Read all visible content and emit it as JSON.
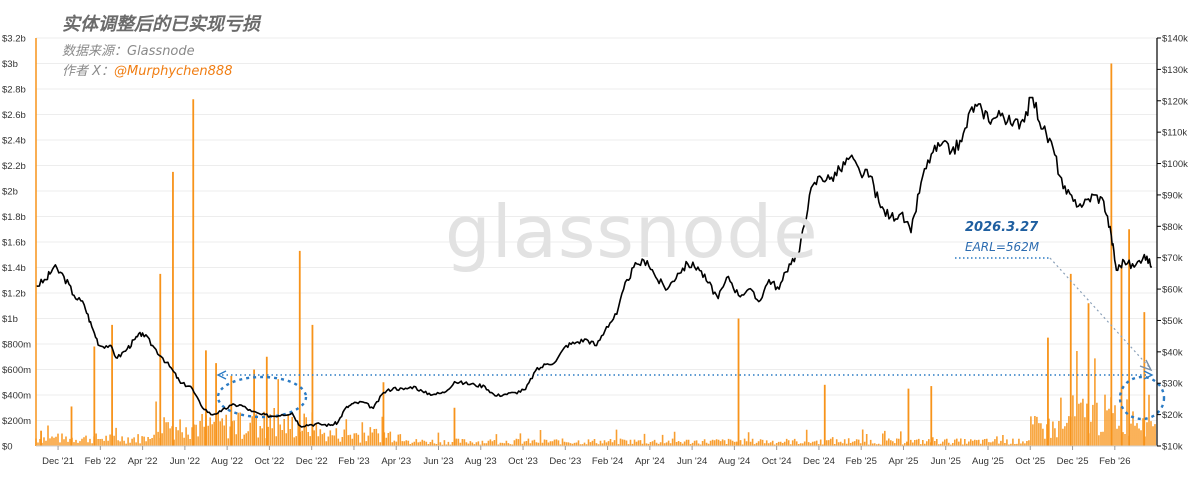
{
  "header": {
    "title": "实体调整后的已实现亏损",
    "source": "数据来源：Glassnode",
    "author_prefix": "作者 X：",
    "author_handle": "@Murphychen888"
  },
  "watermark": "glassnode",
  "annotation": {
    "date": "2026.3.27",
    "earl": "EARL=562M"
  },
  "colors": {
    "loss_bars": "#f7931a",
    "price_line": "#000000",
    "annotation": "#2b7bc4"
  },
  "chart_data": {
    "type": "bar",
    "title": "实体调整后的已实现亏损",
    "x_tick_labels": [
      "Dec '21",
      "Feb '22",
      "Apr '22",
      "Jun '22",
      "Aug '22",
      "Oct '22",
      "Dec '22",
      "Feb '23",
      "Apr '23",
      "Jun '23",
      "Aug '23",
      "Oct '23",
      "Dec '23",
      "Feb '24",
      "Apr '24",
      "Jun '24",
      "Aug '24",
      "Oct '24",
      "Dec '24",
      "Feb '25",
      "Apr '25",
      "Jun '25",
      "Aug '25",
      "Oct '25",
      "Dec '25",
      "Feb '26"
    ],
    "y_left": {
      "ticks": [
        "$0",
        "$200m",
        "$400m",
        "$600m",
        "$800m",
        "$1b",
        "$1.2b",
        "$1.4b",
        "$1.6b",
        "$1.8b",
        "$2b",
        "$2.2b",
        "$2.4b",
        "$2.6b",
        "$2.8b",
        "$3b",
        "$3.2b"
      ],
      "range": [
        0,
        3.2
      ],
      "unit": "b"
    },
    "y_right": {
      "ticks": [
        "$10k",
        "$20k",
        "$30k",
        "$40k",
        "$50k",
        "$60k",
        "$70k",
        "$80k",
        "$90k",
        "$100k",
        "$110k",
        "$120k",
        "$130k",
        "$140k"
      ],
      "range": [
        10,
        140
      ],
      "unit": "k"
    },
    "x_range": [
      2021.83,
      2026.25
    ],
    "price_series": [
      [
        2021.83,
        61
      ],
      [
        2021.87,
        63
      ],
      [
        2021.9,
        67
      ],
      [
        2021.94,
        64
      ],
      [
        2021.98,
        58
      ],
      [
        2022.02,
        55
      ],
      [
        2022.05,
        48
      ],
      [
        2022.08,
        42
      ],
      [
        2022.12,
        42
      ],
      [
        2022.15,
        38
      ],
      [
        2022.19,
        41
      ],
      [
        2022.22,
        44
      ],
      [
        2022.25,
        46
      ],
      [
        2022.29,
        42
      ],
      [
        2022.33,
        38
      ],
      [
        2022.37,
        34
      ],
      [
        2022.4,
        30
      ],
      [
        2022.44,
        29
      ],
      [
        2022.48,
        23
      ],
      [
        2022.52,
        20
      ],
      [
        2022.56,
        21
      ],
      [
        2022.6,
        23
      ],
      [
        2022.64,
        23
      ],
      [
        2022.68,
        21
      ],
      [
        2022.72,
        20
      ],
      [
        2022.76,
        19.5
      ],
      [
        2022.8,
        20
      ],
      [
        2022.84,
        20.5
      ],
      [
        2022.87,
        16.5
      ],
      [
        2022.91,
        16.8
      ],
      [
        2022.95,
        17
      ],
      [
        2022.99,
        16.6
      ],
      [
        2023.02,
        17.5
      ],
      [
        2023.05,
        22
      ],
      [
        2023.08,
        23.5
      ],
      [
        2023.12,
        24
      ],
      [
        2023.16,
        22
      ],
      [
        2023.2,
        27
      ],
      [
        2023.24,
        28.5
      ],
      [
        2023.28,
        28
      ],
      [
        2023.32,
        29
      ],
      [
        2023.36,
        27
      ],
      [
        2023.4,
        26.5
      ],
      [
        2023.44,
        27
      ],
      [
        2023.48,
        30.5
      ],
      [
        2023.52,
        30
      ],
      [
        2023.56,
        29.5
      ],
      [
        2023.6,
        29
      ],
      [
        2023.64,
        26
      ],
      [
        2023.68,
        26.5
      ],
      [
        2023.72,
        27
      ],
      [
        2023.76,
        28
      ],
      [
        2023.8,
        34
      ],
      [
        2023.84,
        36
      ],
      [
        2023.88,
        37
      ],
      [
        2023.92,
        42
      ],
      [
        2023.96,
        43
      ],
      [
        2024.0,
        44
      ],
      [
        2024.04,
        42
      ],
      [
        2024.08,
        48
      ],
      [
        2024.12,
        52
      ],
      [
        2024.16,
        63
      ],
      [
        2024.2,
        68
      ],
      [
        2024.24,
        69
      ],
      [
        2024.28,
        63
      ],
      [
        2024.32,
        60
      ],
      [
        2024.36,
        65
      ],
      [
        2024.4,
        68
      ],
      [
        2024.44,
        67
      ],
      [
        2024.48,
        62
      ],
      [
        2024.52,
        57
      ],
      [
        2024.56,
        64
      ],
      [
        2024.6,
        58
      ],
      [
        2024.64,
        60
      ],
      [
        2024.68,
        56
      ],
      [
        2024.72,
        63
      ],
      [
        2024.76,
        60
      ],
      [
        2024.8,
        68
      ],
      [
        2024.84,
        72
      ],
      [
        2024.88,
        90
      ],
      [
        2024.92,
        96
      ],
      [
        2024.96,
        95
      ],
      [
        2025.0,
        98
      ],
      [
        2025.04,
        102
      ],
      [
        2025.08,
        97
      ],
      [
        2025.12,
        96
      ],
      [
        2025.16,
        86
      ],
      [
        2025.2,
        83
      ],
      [
        2025.24,
        84
      ],
      [
        2025.28,
        78
      ],
      [
        2025.32,
        94
      ],
      [
        2025.36,
        103
      ],
      [
        2025.4,
        106
      ],
      [
        2025.44,
        104
      ],
      [
        2025.48,
        107
      ],
      [
        2025.52,
        118
      ],
      [
        2025.56,
        117
      ],
      [
        2025.6,
        114
      ],
      [
        2025.64,
        116
      ],
      [
        2025.68,
        112
      ],
      [
        2025.72,
        114
      ],
      [
        2025.76,
        121
      ],
      [
        2025.8,
        111
      ],
      [
        2025.84,
        105
      ],
      [
        2025.88,
        92
      ],
      [
        2025.92,
        88
      ],
      [
        2025.96,
        87
      ],
      [
        2026.0,
        90
      ],
      [
        2026.04,
        88
      ],
      [
        2026.07,
        77
      ],
      [
        2026.09,
        66
      ],
      [
        2026.12,
        69
      ],
      [
        2026.16,
        67
      ],
      [
        2026.2,
        71
      ],
      [
        2026.23,
        67
      ]
    ],
    "loss_spikes": [
      [
        2021.85,
        0.12
      ],
      [
        2021.97,
        0.31
      ],
      [
        2022.06,
        0.78
      ],
      [
        2022.13,
        0.95
      ],
      [
        2022.32,
        1.35
      ],
      [
        2022.37,
        2.15
      ],
      [
        2022.45,
        2.72
      ],
      [
        2022.5,
        0.75
      ],
      [
        2022.54,
        0.65
      ],
      [
        2022.6,
        0.55
      ],
      [
        2022.69,
        0.6
      ],
      [
        2022.74,
        0.7
      ],
      [
        2022.87,
        1.53
      ],
      [
        2022.92,
        0.95
      ],
      [
        2023.2,
        0.5
      ],
      [
        2023.48,
        0.3
      ],
      [
        2024.6,
        1.0
      ],
      [
        2024.94,
        0.48
      ],
      [
        2025.27,
        0.45
      ],
      [
        2025.36,
        0.47
      ],
      [
        2025.82,
        0.85
      ],
      [
        2025.91,
        1.35
      ],
      [
        2025.98,
        1.12
      ],
      [
        2026.07,
        3.0
      ],
      [
        2026.11,
        1.42
      ],
      [
        2026.14,
        1.7
      ],
      [
        2026.2,
        1.05
      ]
    ]
  }
}
